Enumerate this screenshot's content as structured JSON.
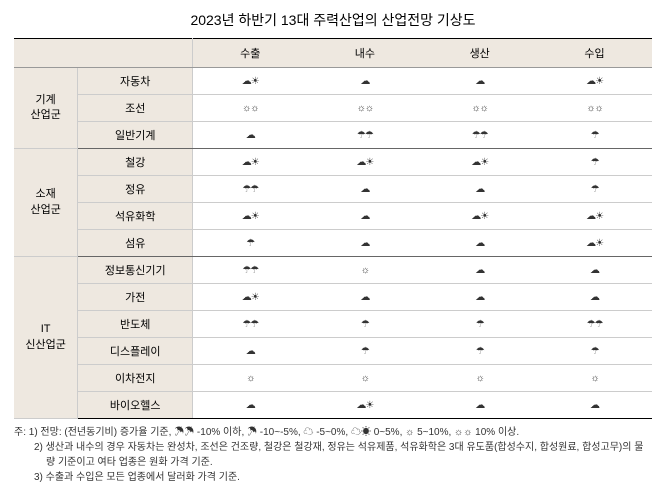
{
  "title": "2023년 하반기 13대 주력산업의 산업전망 기상도",
  "columns": [
    "",
    "수출",
    "내수",
    "생산",
    "수입"
  ],
  "icons": {
    "storm": "☂☂",
    "rain": "☂",
    "cloud": "☁",
    "partly": "☁☀",
    "sun": "☼",
    "sunny": "☼☼"
  },
  "groups": [
    {
      "label": "기계\n산업군",
      "rows": [
        {
          "sector": "자동차",
          "cells": [
            "partly",
            "cloud",
            "cloud",
            "partly"
          ]
        },
        {
          "sector": "조선",
          "cells": [
            "sunny",
            "sunny",
            "sunny",
            "sunny"
          ]
        },
        {
          "sector": "일반기계",
          "cells": [
            "cloud",
            "storm",
            "storm",
            "rain"
          ]
        }
      ]
    },
    {
      "label": "소재\n산업군",
      "rows": [
        {
          "sector": "철강",
          "cells": [
            "partly",
            "partly",
            "partly",
            "rain"
          ]
        },
        {
          "sector": "정유",
          "cells": [
            "storm",
            "cloud",
            "cloud",
            "rain"
          ]
        },
        {
          "sector": "석유화학",
          "cells": [
            "partly",
            "cloud",
            "partly",
            "partly"
          ]
        },
        {
          "sector": "섬유",
          "cells": [
            "rain",
            "cloud",
            "cloud",
            "partly"
          ]
        }
      ]
    },
    {
      "label": "IT\n신산업군",
      "rows": [
        {
          "sector": "정보통신기기",
          "cells": [
            "storm",
            "sun",
            "cloud",
            "cloud"
          ]
        },
        {
          "sector": "가전",
          "cells": [
            "partly",
            "cloud",
            "cloud",
            "cloud"
          ]
        },
        {
          "sector": "반도체",
          "cells": [
            "storm",
            "rain",
            "rain",
            "storm"
          ]
        },
        {
          "sector": "디스플레이",
          "cells": [
            "cloud",
            "rain",
            "rain",
            "rain"
          ]
        },
        {
          "sector": "이차전지",
          "cells": [
            "sun",
            "sun",
            "sun",
            "sun"
          ]
        },
        {
          "sector": "바이오헬스",
          "cells": [
            "cloud",
            "partly",
            "cloud",
            "cloud"
          ]
        }
      ]
    }
  ],
  "footnotes": [
    "주: 1) 전망: (전년동기비) 증가율 기준, ☂☂ -10% 이하, ☂ -10~-5%, ☁ -5~0%, ☁☀ 0~5%, ☼ 5~10%, ☼☼ 10% 이상.",
    "2) 생산과 내수의 경우 자동차는 완성차, 조선은 건조량, 철강은 철강재, 정유는 석유제품, 석유화학은 3대 유도품(합성수지, 합성원료, 합성고무)의 물량 기준이고 여타 업종은 원화 가격 기준.",
    "3) 수출과 수입은 모든 업종에서 달러화 가격 기준."
  ]
}
